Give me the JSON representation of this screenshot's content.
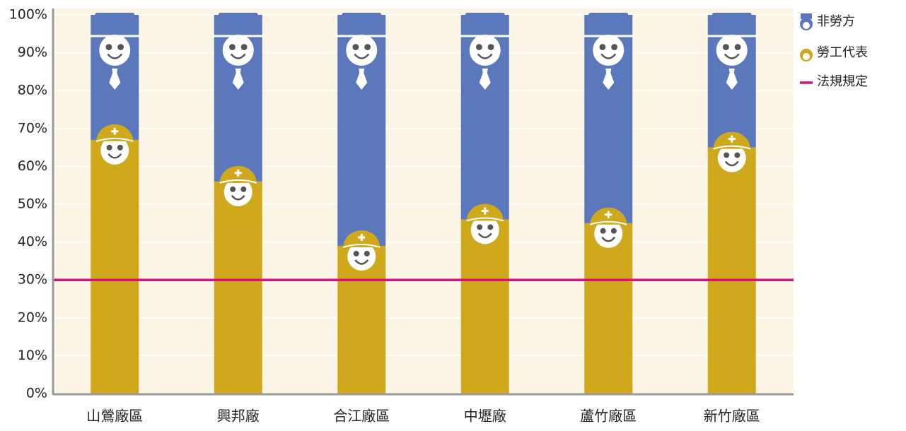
{
  "chart_data": {
    "type": "stacked-bar",
    "categories": [
      "山鶯廠區",
      "興邦廠",
      "合江廠區",
      "中壢廠",
      "蘆竹廠區",
      "新竹廠區"
    ],
    "series": [
      {
        "name": "勞工代表",
        "color": "#d0a81c",
        "values": [
          67,
          56,
          39,
          46,
          45,
          65
        ]
      },
      {
        "name": "非勞方",
        "color": "#5b78bd",
        "values": [
          33,
          44,
          61,
          54,
          55,
          35
        ]
      }
    ],
    "reference": {
      "name": "法規規定",
      "value": 30,
      "color": "#d6127a"
    },
    "ylim": [
      0,
      100
    ],
    "yticks": [
      {
        "value": 0,
        "label": "0%"
      },
      {
        "value": 10,
        "label": "10%"
      },
      {
        "value": 20,
        "label": "20%"
      },
      {
        "value": 30,
        "label": "30%"
      },
      {
        "value": 40,
        "label": "40%"
      },
      {
        "value": 50,
        "label": "50%"
      },
      {
        "value": 60,
        "label": "60%"
      },
      {
        "value": 70,
        "label": "70%"
      },
      {
        "value": 80,
        "label": "80%"
      },
      {
        "value": 90,
        "label": "90%"
      },
      {
        "value": 100,
        "label": "100%"
      }
    ],
    "grid": true
  }
}
